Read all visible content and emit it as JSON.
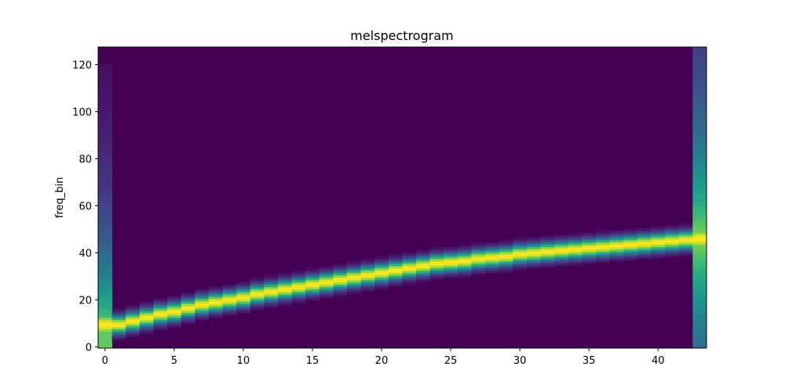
{
  "chart_data": {
    "type": "heatmap",
    "title": "melspectrogram",
    "xlabel": "",
    "ylabel": "freq_bin",
    "colormap": "viridis",
    "n_frames": 44,
    "n_freq_bins": 128,
    "xlim": [
      -0.5,
      43.5
    ],
    "ylim": [
      -0.5,
      127.5
    ],
    "x_ticks": [
      0,
      5,
      10,
      15,
      20,
      25,
      30,
      35,
      40
    ],
    "y_ticks": [
      0,
      20,
      40,
      60,
      80,
      100,
      120
    ],
    "peak_freq_bin_by_frame": [
      9.5,
      9.5,
      11,
      12.5,
      14,
      15,
      16.5,
      18,
      19,
      20,
      21,
      22.5,
      23.5,
      24.5,
      25.5,
      26.5,
      27.5,
      28.5,
      29.5,
      30.5,
      31.5,
      32.5,
      33.5,
      34.5,
      35.5,
      36,
      36.5,
      37.5,
      38,
      38.5,
      39.5,
      40,
      40.5,
      41,
      41.5,
      42,
      42.5,
      43,
      43.5,
      44,
      44.5,
      45,
      45.5,
      46
    ],
    "edge_frames": [
      {
        "frame": 0,
        "description": "broadband energy decaying toward high freq_bin, peak near bin 9"
      },
      {
        "frame": 43,
        "description": "broadband energy, peak near bin 46"
      }
    ]
  }
}
